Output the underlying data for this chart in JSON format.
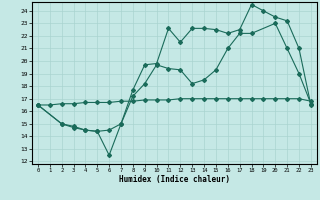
{
  "xlabel": "Humidex (Indice chaleur)",
  "bg_color": "#c5e8e5",
  "line_color": "#1a6b5a",
  "grid_color": "#aad4d0",
  "xlim": [
    -0.5,
    23.5
  ],
  "ylim": [
    11.8,
    24.7
  ],
  "yticks": [
    12,
    13,
    14,
    15,
    16,
    17,
    18,
    19,
    20,
    21,
    22,
    23,
    24
  ],
  "xticks": [
    0,
    1,
    2,
    3,
    4,
    5,
    6,
    7,
    8,
    9,
    10,
    11,
    12,
    13,
    14,
    15,
    16,
    17,
    18,
    19,
    20,
    21,
    22,
    23
  ],
  "line1_x": [
    0,
    1,
    2,
    3,
    4,
    5,
    6,
    7,
    8,
    9,
    10,
    11,
    12,
    13,
    14,
    15,
    16,
    17,
    18,
    19,
    20,
    21,
    22,
    23
  ],
  "line1_y": [
    16.5,
    16.5,
    16.6,
    16.6,
    16.7,
    16.7,
    16.7,
    16.8,
    16.8,
    16.9,
    16.9,
    16.9,
    17.0,
    17.0,
    17.0,
    17.0,
    17.0,
    17.0,
    17.0,
    17.0,
    17.0,
    17.0,
    17.0,
    16.8
  ],
  "line2_x": [
    0,
    2,
    3,
    4,
    5,
    6,
    7,
    8,
    9,
    10,
    11,
    12,
    13,
    14,
    15,
    16,
    17,
    18,
    20,
    21,
    22,
    23
  ],
  "line2_y": [
    16.5,
    15.0,
    14.8,
    14.5,
    14.4,
    12.5,
    15.0,
    17.2,
    18.2,
    19.7,
    19.4,
    19.3,
    18.2,
    18.5,
    19.3,
    21.0,
    22.2,
    22.2,
    23.0,
    21.0,
    19.0,
    16.6
  ],
  "line3_x": [
    0,
    2,
    3,
    4,
    5,
    6,
    7,
    8,
    9,
    10,
    11,
    12,
    13,
    14,
    15,
    16,
    17,
    18,
    19,
    20,
    21,
    22,
    23
  ],
  "line3_y": [
    16.5,
    15.0,
    14.7,
    14.5,
    14.4,
    14.5,
    15.0,
    17.7,
    19.7,
    19.8,
    22.6,
    21.5,
    22.6,
    22.6,
    22.5,
    22.2,
    22.5,
    24.5,
    24.0,
    23.5,
    23.2,
    21.0,
    16.5
  ]
}
